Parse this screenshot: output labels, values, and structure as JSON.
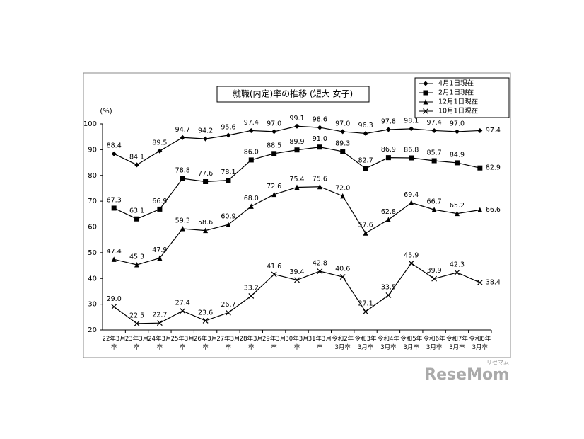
{
  "chart_data": {
    "type": "line",
    "title": "就職(内定)率の推移 (短大 女子)",
    "y_unit_label": "(%)",
    "categories": [
      "22年3月\n卒",
      "23年3月\n卒",
      "24年3月\n卒",
      "25年3月\n卒",
      "26年3月\n卒",
      "27年3月\n卒",
      "28年3月\n卒",
      "29年3月\n卒",
      "30年3月\n卒",
      "31年3月\n卒",
      "令和2年\n3月卒",
      "令和3年\n3月卒",
      "令和4年\n3月卒",
      "令和5年\n3月卒",
      "令和6年\n3月卒",
      "令和7年\n3月卒",
      "令和8年\n3月卒"
    ],
    "series": [
      {
        "name": "4月1日現在",
        "color": "#000000",
        "marker": "diamond",
        "values": [
          88.4,
          84.1,
          89.5,
          94.7,
          94.2,
          95.6,
          97.4,
          97.0,
          99.1,
          98.6,
          97.0,
          96.3,
          97.8,
          98.1,
          97.4,
          97.0,
          97.4
        ],
        "value_labels": [
          "88.4",
          "84.1",
          "89.5",
          "94.7",
          "94.2",
          "95.6",
          "97.4",
          "97.0",
          "99.1",
          "98.6",
          "97.0",
          "96.3",
          "97.8",
          "98.1",
          "97.4",
          "97.0",
          "97.4"
        ]
      },
      {
        "name": "2月1日現在",
        "color": "#000000",
        "marker": "square",
        "values": [
          67.3,
          63.1,
          66.9,
          78.8,
          77.6,
          78.1,
          86.0,
          88.5,
          89.9,
          91.0,
          89.3,
          82.7,
          86.9,
          86.8,
          85.7,
          84.9,
          82.9
        ],
        "value_labels": [
          "67.3",
          "63.1",
          "66.9",
          "78.8",
          "77.6",
          "78.1",
          "86.0",
          "88.5",
          "89.9",
          "91.0",
          "89.3",
          "82.7",
          "86.9",
          "86.8",
          "85.7",
          "84.9",
          "82.9"
        ]
      },
      {
        "name": "12月1日現在",
        "color": "#000000",
        "marker": "triangle",
        "values": [
          47.4,
          45.3,
          47.9,
          59.3,
          58.6,
          60.9,
          68.0,
          72.6,
          75.4,
          75.6,
          72.0,
          57.6,
          62.8,
          69.4,
          66.7,
          65.2,
          66.6
        ],
        "value_labels": [
          "47.4",
          "45.3",
          "47.9",
          "59.3",
          "58.6",
          "60.9",
          "68.0",
          "72.6",
          "75.4",
          "75.6",
          "72.0",
          "57.6",
          "62.8",
          "69.4",
          "66.7",
          "65.2",
          "66.6"
        ]
      },
      {
        "name": "10月1日現在",
        "color": "#000000",
        "marker": "x",
        "values": [
          29.0,
          22.5,
          22.7,
          27.4,
          23.6,
          26.7,
          33.2,
          41.6,
          39.4,
          42.8,
          40.6,
          27.1,
          33.5,
          45.9,
          39.9,
          42.3,
          38.4
        ],
        "value_labels": [
          "29.0",
          "22.5",
          "22.7",
          "27.4",
          "23.6",
          "26.7",
          "33.2",
          "41.6",
          "39.4",
          "42.8",
          "40.6",
          "27.1",
          "33.5",
          "45.9",
          "39.9",
          "42.3",
          "38.4"
        ]
      }
    ],
    "ylim": [
      20,
      100
    ],
    "yticks": [
      20,
      30,
      40,
      50,
      60,
      70,
      80,
      90,
      100
    ],
    "grid": false,
    "legend": "top-right"
  },
  "watermark": {
    "text": "ReseMom",
    "small": "リセマム"
  }
}
